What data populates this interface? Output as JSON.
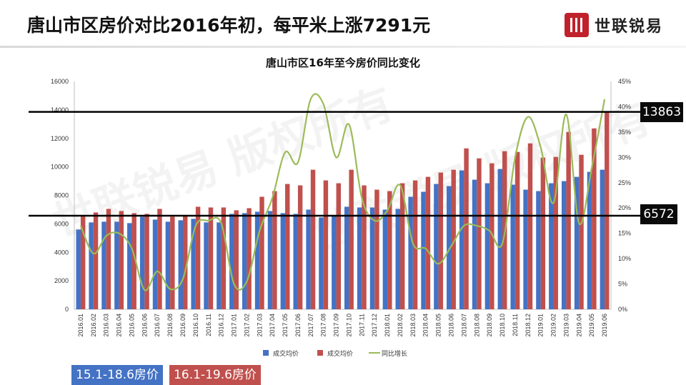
{
  "header": {
    "title": "唐山市区房价对比2016年初，每平米上涨7291元",
    "logo_text": "世联锐易"
  },
  "watermark_text": "世联锐易 版权所有",
  "callouts": {
    "high": "13863",
    "low": "6572"
  },
  "legend_boxes": {
    "blue": "15.1-18.6房价",
    "red": "16.1-19.6房价"
  },
  "colors": {
    "blue": "#4472c4",
    "red": "#c0504d",
    "green": "#9bbb59",
    "brand": "#c0212b"
  },
  "chart_data": {
    "type": "bar",
    "title": "唐山市区16年至今房价同比变化",
    "categories": [
      "2016.01",
      "2016.02",
      "2016.03",
      "2016.04",
      "2016.05",
      "2016.06",
      "2016.07",
      "2016.08",
      "2016.09",
      "2016.10",
      "2016.11",
      "2016.12",
      "2017.01",
      "2017.02",
      "2017.03",
      "2017.04",
      "2017.05",
      "2017.06",
      "2017.07",
      "2017.08",
      "2017.09",
      "2017.10",
      "2017.11",
      "2017.12",
      "2018.01",
      "2018.02",
      "2018.03",
      "2018.04",
      "2018.05",
      "2018.06",
      "2018.07",
      "2018.08",
      "2018.09",
      "2018.10",
      "2018.11",
      "2018.12",
      "2019.01",
      "2019.02",
      "2019.03",
      "2019.04",
      "2019.05",
      "2019.06"
    ],
    "y_left": {
      "min": 0,
      "max": 16000,
      "ticks": [
        "0",
        "2000",
        "4000",
        "6000",
        "8000",
        "10000",
        "12000",
        "14000",
        "16000"
      ]
    },
    "y_right": {
      "min": 0,
      "max": 45,
      "ticks": [
        "0%",
        "5%",
        "10%",
        "15%",
        "20%",
        "25%",
        "30%",
        "35%",
        "40%",
        "45%"
      ]
    },
    "series": [
      {
        "name": "成交均价",
        "axis": "left",
        "kind": "bar",
        "values": [
          5600,
          6100,
          6150,
          6150,
          6050,
          6500,
          6300,
          6150,
          6250,
          6350,
          6100,
          6100,
          6700,
          6750,
          6850,
          6900,
          6750,
          6700,
          7000,
          6450,
          6600,
          7200,
          7150,
          7150,
          7000,
          7050,
          7900,
          8250,
          8800,
          8650,
          9750,
          9100,
          8850,
          9850,
          8750,
          8400,
          8300,
          8850,
          9000,
          9300,
          9650,
          9800
        ]
      },
      {
        "name": "成交均价",
        "axis": "left",
        "kind": "bar",
        "values": [
          6600,
          6800,
          7050,
          6900,
          6750,
          6700,
          7050,
          6500,
          6600,
          7200,
          7150,
          7150,
          6950,
          7100,
          7900,
          8300,
          8800,
          8700,
          9800,
          9050,
          8850,
          9800,
          8700,
          8400,
          8300,
          8850,
          9050,
          9300,
          9600,
          9800,
          11300,
          10600,
          10250,
          11100,
          11050,
          11650,
          10650,
          10700,
          12450,
          10850,
          12700,
          13863
        ]
      },
      {
        "name": "同比增长",
        "axis": "right",
        "kind": "line",
        "values": [
          16.5,
          11.0,
          14.5,
          15.0,
          12.0,
          3.8,
          7.5,
          4.0,
          6.0,
          16.5,
          17.5,
          17.0,
          5.0,
          5.5,
          15.5,
          22.0,
          31.0,
          29.0,
          41.5,
          40.5,
          30.0,
          36.5,
          22.0,
          17.5,
          19.5,
          24.5,
          13.0,
          12.0,
          9.0,
          12.5,
          16.5,
          16.5,
          15.5,
          13.0,
          30.0,
          38.0,
          32.0,
          21.0,
          38.5,
          17.0,
          28.0,
          41.5
        ]
      }
    ],
    "reference_lines": [
      13863,
      6572
    ],
    "legend_position": "bottom"
  }
}
